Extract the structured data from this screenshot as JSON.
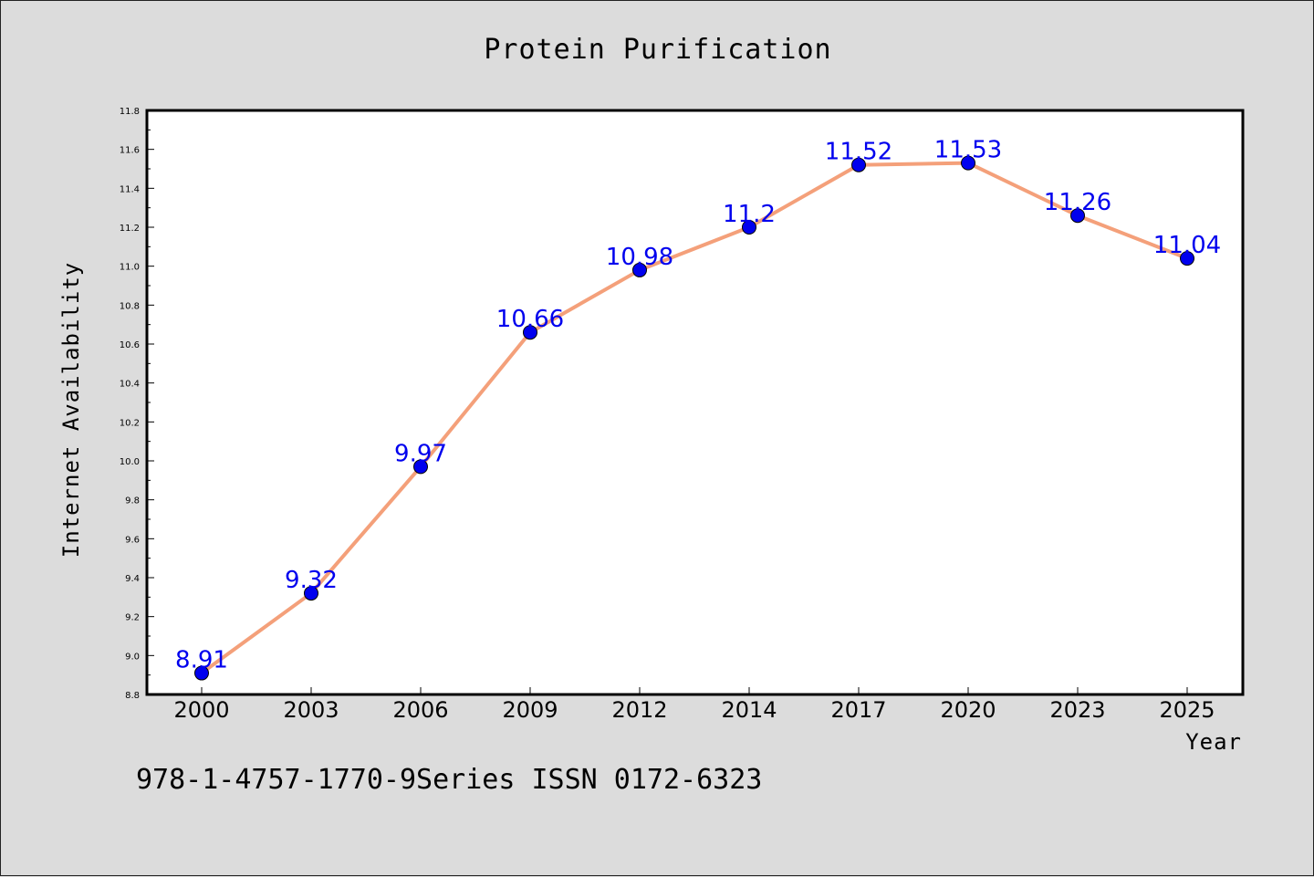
{
  "chart_data": {
    "type": "line",
    "title": "Protein Purification",
    "xlabel": "Year",
    "ylabel": "Internet Availability",
    "categories": [
      "2000",
      "2003",
      "2006",
      "2009",
      "2012",
      "2014",
      "2017",
      "2020",
      "2023",
      "2025"
    ],
    "values": [
      8.91,
      9.32,
      9.97,
      10.66,
      10.98,
      11.2,
      11.52,
      11.53,
      11.26,
      11.04
    ],
    "data_labels": [
      "8.91",
      "9.32",
      "9.97",
      "10.66",
      "10.98",
      "11.2",
      "11.52",
      "11.53",
      "11.26",
      "11.04"
    ],
    "ylim": [
      8.8,
      11.8
    ],
    "yticks": [
      "8.8",
      "9.0",
      "9.2",
      "9.4",
      "9.6",
      "9.8",
      "10.0",
      "10.2",
      "10.4",
      "10.6",
      "10.8",
      "11.0",
      "11.2",
      "11.4",
      "11.6",
      "11.8"
    ],
    "grid": false,
    "line_color": "#f4a07a",
    "marker_color": "#0000ee",
    "label_color": "#0000ee"
  },
  "footer_text": "978-1-4757-1770-9Series ISSN 0172-6323"
}
